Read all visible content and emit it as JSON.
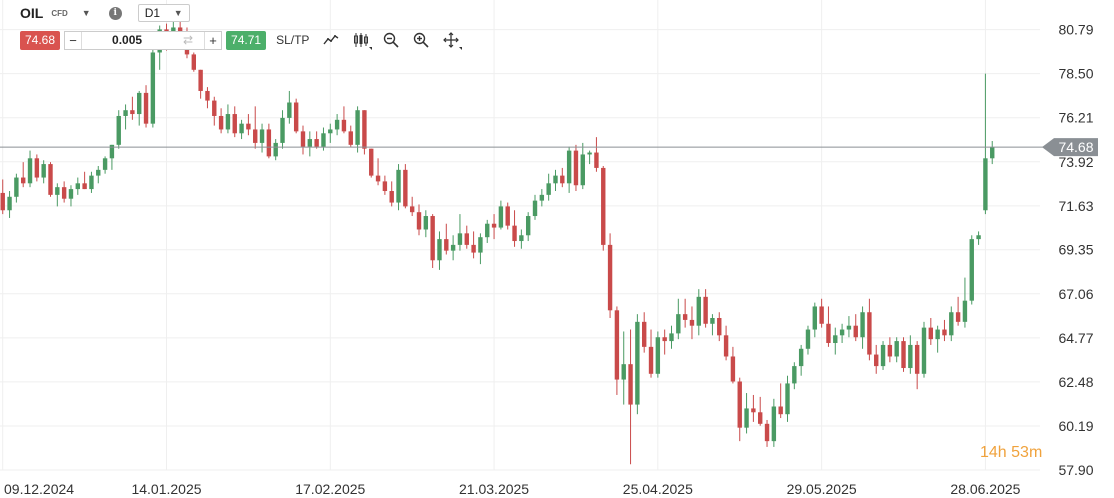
{
  "header": {
    "symbol": "OIL",
    "symbol_type": "CFD",
    "timeframe": "D1"
  },
  "trade_bar": {
    "sell_price": "74.68",
    "quantity": "0.005",
    "buy_price": "74.71",
    "sltp_label": "SL/TP"
  },
  "countdown": {
    "hours": "14",
    "hours_unit": "h",
    "minutes": "53",
    "minutes_unit": "m"
  },
  "colors": {
    "bull": "#4a9a63",
    "bear": "#c94a4a",
    "price_line": "#8a8f94",
    "countdown": "#f0a23c"
  },
  "chart_data": {
    "type": "candlestick",
    "instrument": "OIL",
    "timeframe": "D1",
    "current_price": 74.68,
    "current_price_label": "74.68",
    "ylim": [
      57.9,
      81.6
    ],
    "y_ticks": [
      57.9,
      60.19,
      62.48,
      64.77,
      67.06,
      69.35,
      71.63,
      73.92,
      76.21,
      78.5,
      80.79
    ],
    "y_tick_labels": [
      "57.90",
      "60.19",
      "62.48",
      "64.77",
      "67.06",
      "69.35",
      "71.63",
      "73.92",
      "76.21",
      "78.50",
      "80.79"
    ],
    "x_ticks": [
      0,
      24,
      48,
      72,
      96,
      120,
      144
    ],
    "x_tick_labels": [
      "09.12.2024",
      "14.01.2025",
      "17.02.2025",
      "21.03.2025",
      "25.04.2025",
      "29.05.2025",
      "28.06.2025"
    ],
    "x_range": [
      -0.4,
      152
    ],
    "grid": true,
    "candles": [
      [
        72.3,
        73.0,
        71.2,
        71.4
      ],
      [
        71.4,
        72.4,
        71.0,
        72.1
      ],
      [
        72.1,
        73.3,
        71.8,
        73.1
      ],
      [
        73.1,
        73.9,
        72.6,
        72.8
      ],
      [
        72.8,
        74.5,
        72.6,
        74.1
      ],
      [
        74.1,
        74.3,
        72.9,
        73.1
      ],
      [
        73.1,
        74.0,
        72.8,
        73.8
      ],
      [
        73.8,
        73.9,
        72.1,
        72.2
      ],
      [
        72.2,
        72.8,
        71.6,
        72.6
      ],
      [
        72.6,
        72.9,
        71.8,
        72.0
      ],
      [
        72.0,
        72.7,
        71.6,
        72.5
      ],
      [
        72.5,
        73.1,
        72.2,
        72.8
      ],
      [
        72.8,
        73.4,
        72.5,
        72.5
      ],
      [
        72.5,
        73.4,
        72.3,
        73.2
      ],
      [
        73.2,
        73.7,
        72.8,
        73.5
      ],
      [
        73.5,
        74.2,
        73.3,
        74.1
      ],
      [
        74.1,
        74.8,
        73.5,
        74.8
      ],
      [
        74.8,
        76.6,
        74.6,
        76.3
      ],
      [
        76.3,
        76.9,
        75.6,
        76.6
      ],
      [
        76.6,
        77.3,
        76.1,
        76.4
      ],
      [
        76.4,
        77.6,
        75.8,
        77.5
      ],
      [
        77.5,
        77.9,
        75.7,
        75.9
      ],
      [
        75.9,
        79.8,
        75.7,
        79.6
      ],
      [
        79.6,
        81.0,
        78.7,
        80.8
      ],
      [
        80.8,
        81.1,
        79.7,
        80.1
      ],
      [
        80.1,
        81.2,
        79.9,
        80.9
      ],
      [
        80.9,
        81.6,
        80.2,
        80.3
      ],
      [
        80.3,
        80.9,
        79.3,
        79.5
      ],
      [
        79.5,
        79.6,
        78.6,
        78.7
      ],
      [
        78.7,
        78.7,
        77.2,
        77.6
      ],
      [
        77.6,
        77.8,
        76.7,
        77.1
      ],
      [
        77.1,
        77.3,
        75.8,
        76.3
      ],
      [
        76.3,
        76.7,
        75.4,
        75.6
      ],
      [
        75.6,
        76.9,
        75.4,
        76.4
      ],
      [
        76.4,
        76.8,
        75.2,
        75.4
      ],
      [
        75.4,
        76.1,
        75.1,
        75.9
      ],
      [
        75.9,
        76.4,
        75.3,
        75.6
      ],
      [
        75.6,
        76.8,
        74.6,
        74.9
      ],
      [
        74.9,
        75.9,
        74.4,
        75.6
      ],
      [
        75.6,
        75.9,
        74.1,
        74.2
      ],
      [
        74.2,
        75.1,
        74.0,
        74.9
      ],
      [
        74.9,
        76.6,
        74.6,
        76.2
      ],
      [
        76.2,
        77.6,
        75.9,
        77.0
      ],
      [
        77.0,
        77.2,
        75.4,
        75.5
      ],
      [
        75.5,
        75.8,
        74.3,
        74.7
      ],
      [
        74.7,
        75.5,
        74.2,
        75.1
      ],
      [
        75.1,
        75.5,
        74.6,
        74.7
      ],
      [
        74.7,
        75.7,
        74.5,
        75.4
      ],
      [
        75.4,
        75.9,
        74.9,
        75.6
      ],
      [
        75.6,
        76.4,
        75.3,
        76.1
      ],
      [
        76.1,
        76.8,
        75.4,
        75.5
      ],
      [
        75.5,
        75.8,
        74.7,
        74.8
      ],
      [
        74.8,
        76.8,
        74.4,
        76.6
      ],
      [
        76.6,
        76.6,
        74.3,
        74.6
      ],
      [
        74.6,
        74.6,
        73.1,
        73.2
      ],
      [
        73.2,
        74.1,
        72.7,
        72.9
      ],
      [
        72.9,
        73.2,
        72.2,
        72.4
      ],
      [
        72.4,
        72.9,
        71.6,
        71.8
      ],
      [
        71.8,
        73.8,
        71.4,
        73.5
      ],
      [
        73.5,
        73.8,
        71.5,
        71.6
      ],
      [
        71.6,
        72.1,
        71.1,
        71.3
      ],
      [
        71.3,
        71.7,
        70.1,
        70.4
      ],
      [
        70.4,
        71.4,
        70.0,
        71.1
      ],
      [
        71.1,
        71.2,
        68.4,
        68.8
      ],
      [
        68.8,
        70.3,
        68.3,
        69.9
      ],
      [
        69.9,
        70.7,
        69.1,
        69.3
      ],
      [
        69.3,
        70.1,
        68.8,
        69.6
      ],
      [
        69.6,
        71.2,
        69.3,
        70.2
      ],
      [
        70.2,
        70.6,
        69.4,
        69.6
      ],
      [
        69.6,
        70.3,
        68.9,
        69.2
      ],
      [
        69.2,
        70.2,
        68.6,
        70.0
      ],
      [
        70.0,
        70.9,
        69.7,
        70.7
      ],
      [
        70.7,
        71.2,
        69.9,
        70.5
      ],
      [
        70.5,
        71.9,
        70.4,
        71.6
      ],
      [
        71.6,
        71.8,
        70.4,
        70.6
      ],
      [
        70.6,
        71.4,
        69.5,
        69.8
      ],
      [
        69.8,
        70.4,
        69.4,
        70.1
      ],
      [
        70.1,
        71.3,
        69.8,
        71.1
      ],
      [
        71.1,
        72.2,
        70.9,
        71.9
      ],
      [
        71.9,
        72.5,
        71.6,
        72.2
      ],
      [
        72.2,
        73.3,
        71.9,
        72.8
      ],
      [
        72.8,
        73.5,
        72.4,
        73.2
      ],
      [
        73.2,
        73.6,
        72.6,
        72.8
      ],
      [
        72.8,
        74.7,
        72.3,
        74.5
      ],
      [
        74.5,
        74.8,
        72.4,
        72.7
      ],
      [
        72.7,
        74.9,
        72.5,
        74.3
      ],
      [
        74.3,
        74.5,
        73.8,
        74.4
      ],
      [
        74.4,
        75.2,
        73.4,
        73.6
      ],
      [
        73.6,
        73.7,
        69.3,
        69.6
      ],
      [
        69.6,
        70.2,
        65.8,
        66.2
      ],
      [
        66.2,
        66.4,
        61.8,
        62.6
      ],
      [
        62.6,
        65.1,
        61.3,
        63.4
      ],
      [
        63.4,
        65.2,
        58.2,
        61.3
      ],
      [
        61.3,
        66.0,
        60.8,
        65.6
      ],
      [
        65.6,
        66.1,
        64.0,
        64.3
      ],
      [
        64.3,
        65.2,
        62.7,
        62.9
      ],
      [
        62.9,
        65.1,
        62.7,
        64.8
      ],
      [
        64.8,
        65.2,
        63.9,
        64.6
      ],
      [
        64.6,
        65.4,
        64.2,
        65.0
      ],
      [
        65.0,
        66.8,
        64.7,
        66.0
      ],
      [
        66.0,
        66.8,
        65.3,
        65.7
      ],
      [
        65.7,
        66.4,
        64.7,
        65.4
      ],
      [
        65.4,
        67.3,
        64.9,
        66.9
      ],
      [
        66.9,
        67.3,
        65.3,
        65.5
      ],
      [
        65.5,
        66.0,
        64.9,
        65.8
      ],
      [
        65.8,
        66.1,
        64.6,
        64.9
      ],
      [
        64.9,
        65.4,
        63.6,
        63.8
      ],
      [
        63.8,
        64.3,
        62.4,
        62.5
      ],
      [
        62.5,
        62.7,
        59.4,
        60.1
      ],
      [
        60.1,
        61.9,
        59.8,
        61.1
      ],
      [
        61.1,
        61.8,
        60.4,
        60.9
      ],
      [
        60.9,
        61.7,
        60.2,
        60.3
      ],
      [
        60.3,
        60.5,
        59.1,
        59.4
      ],
      [
        59.4,
        61.6,
        59.1,
        61.2
      ],
      [
        61.2,
        62.4,
        60.6,
        60.8
      ],
      [
        60.8,
        62.8,
        60.4,
        62.4
      ],
      [
        62.4,
        63.5,
        62.1,
        63.3
      ],
      [
        63.3,
        64.4,
        62.8,
        64.2
      ],
      [
        64.2,
        65.4,
        63.9,
        65.2
      ],
      [
        65.2,
        66.6,
        64.8,
        66.4
      ],
      [
        66.4,
        66.8,
        65.3,
        65.5
      ],
      [
        65.5,
        66.4,
        64.3,
        64.5
      ],
      [
        64.5,
        65.3,
        63.9,
        64.9
      ],
      [
        64.9,
        65.5,
        64.5,
        65.2
      ],
      [
        65.2,
        65.9,
        64.8,
        65.4
      ],
      [
        65.4,
        66.0,
        64.6,
        64.8
      ],
      [
        64.8,
        66.4,
        64.2,
        66.1
      ],
      [
        66.1,
        66.8,
        63.6,
        63.9
      ],
      [
        63.9,
        64.4,
        62.9,
        63.3
      ],
      [
        63.3,
        64.6,
        63.1,
        64.4
      ],
      [
        64.4,
        64.8,
        63.5,
        63.8
      ],
      [
        63.8,
        64.8,
        63.5,
        64.6
      ],
      [
        64.6,
        64.8,
        63.0,
        63.2
      ],
      [
        63.2,
        64.9,
        62.9,
        64.4
      ],
      [
        64.4,
        64.6,
        62.1,
        62.9
      ],
      [
        62.9,
        65.6,
        62.7,
        65.3
      ],
      [
        65.3,
        65.8,
        64.4,
        64.7
      ],
      [
        64.7,
        65.4,
        64.0,
        65.2
      ],
      [
        65.2,
        65.7,
        64.6,
        64.9
      ],
      [
        64.9,
        66.4,
        64.6,
        66.1
      ],
      [
        66.1,
        66.9,
        65.4,
        65.6
      ],
      [
        65.6,
        67.9,
        65.3,
        66.7
      ],
      [
        66.7,
        70.1,
        66.5,
        69.9
      ],
      [
        69.9,
        70.3,
        69.6,
        70.1
      ],
      [
        71.4,
        78.5,
        71.2,
        74.1
      ],
      [
        74.1,
        75.0,
        73.8,
        74.68
      ]
    ]
  }
}
